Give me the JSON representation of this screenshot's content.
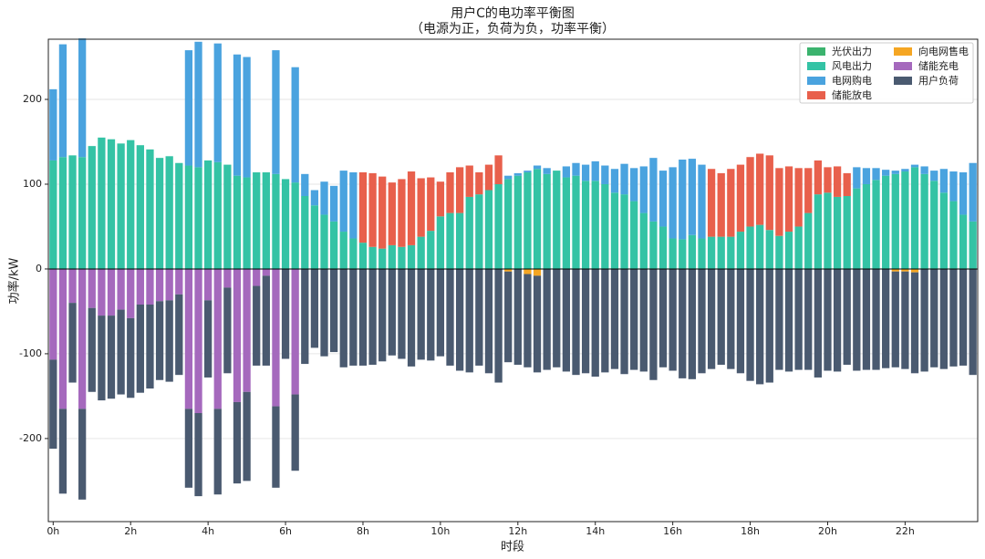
{
  "chart_data": {
    "type": "bar",
    "title": "用户C的电功率平衡图",
    "subtitle": "（电源为正，负荷为负，功率平衡）",
    "x_label": "时段",
    "y_label": "功率/kW",
    "categories": [
      "0h",
      null,
      null,
      null,
      null,
      null,
      null,
      null,
      "2h",
      null,
      null,
      null,
      null,
      null,
      null,
      null,
      "4h",
      null,
      null,
      null,
      null,
      null,
      null,
      null,
      "6h",
      null,
      null,
      null,
      null,
      null,
      null,
      null,
      "8h",
      null,
      null,
      null,
      null,
      null,
      null,
      null,
      "10h",
      null,
      null,
      null,
      null,
      null,
      null,
      null,
      "12h",
      null,
      null,
      null,
      null,
      null,
      null,
      null,
      "14h",
      null,
      null,
      null,
      null,
      null,
      null,
      null,
      "16h",
      null,
      null,
      null,
      null,
      null,
      null,
      null,
      "18h",
      null,
      null,
      null,
      null,
      null,
      null,
      null,
      "20h",
      null,
      null,
      null,
      null,
      null,
      null,
      null,
      "22h",
      null,
      null,
      null,
      null,
      null,
      null,
      null
    ],
    "ylim": [
      -298,
      271
    ],
    "yticks": [
      -200,
      -100,
      0,
      100,
      200
    ],
    "grid": true,
    "legend": "upper right",
    "series": [
      {
        "name": "光伏出力",
        "color": "#3bb36e",
        "values": [
          0,
          0,
          0,
          0,
          0,
          0,
          0,
          0,
          0,
          0,
          0,
          0,
          0,
          0,
          0,
          0,
          0,
          0,
          0,
          0,
          0,
          0,
          0,
          0,
          0,
          0,
          0,
          0,
          0,
          0,
          0,
          0,
          0,
          0,
          0,
          0,
          0,
          0,
          0,
          0,
          0,
          0,
          0,
          0,
          0,
          0,
          0,
          0,
          0,
          0,
          0,
          0,
          0,
          0,
          0,
          0,
          0,
          0,
          0,
          0,
          0,
          0,
          0,
          0,
          0,
          0,
          0,
          0,
          0,
          0,
          0,
          0,
          0,
          0,
          0,
          0,
          0,
          0,
          0,
          0,
          0,
          0,
          0,
          0,
          0,
          0,
          0,
          0,
          0,
          0,
          0,
          0,
          0,
          0,
          0,
          0
        ]
      },
      {
        "name": "风电出力",
        "color": "#34c3a5",
        "values": [
          128,
          132,
          134,
          132,
          145,
          155,
          153,
          148,
          152,
          146,
          141,
          131,
          133,
          125,
          122,
          120,
          128,
          126,
          123,
          110,
          108,
          114,
          114,
          112,
          106,
          102,
          86,
          75,
          64,
          56,
          44,
          36,
          31,
          26,
          24,
          28,
          26,
          28,
          38,
          45,
          62,
          66,
          66,
          85,
          88,
          93,
          100,
          106,
          110,
          114,
          118,
          112,
          116,
          108,
          110,
          104,
          104,
          100,
          90,
          88,
          80,
          66,
          56,
          50,
          36,
          35,
          40,
          36,
          38,
          38,
          38,
          44,
          50,
          52,
          46,
          39,
          44,
          50,
          66,
          88,
          90,
          85,
          86,
          95,
          100,
          105,
          110,
          112,
          115,
          120,
          112,
          104,
          90,
          80,
          64,
          56
        ]
      },
      {
        "name": "电网购电",
        "color": "#4aa3df",
        "values": [
          84,
          133,
          0,
          140,
          0,
          0,
          0,
          0,
          0,
          0,
          0,
          0,
          0,
          0,
          136,
          148,
          0,
          140,
          0,
          143,
          142,
          0,
          0,
          146,
          0,
          136,
          26,
          18,
          39,
          42,
          72,
          78,
          0,
          0,
          0,
          0,
          0,
          0,
          0,
          0,
          0,
          0,
          0,
          0,
          0,
          0,
          0,
          4,
          3,
          2,
          4,
          7,
          0,
          13,
          15,
          19,
          23,
          22,
          28,
          36,
          39,
          55,
          75,
          66,
          84,
          94,
          90,
          87,
          0,
          0,
          0,
          0,
          0,
          0,
          0,
          0,
          0,
          0,
          0,
          0,
          0,
          0,
          0,
          25,
          19,
          14,
          7,
          4,
          3,
          3,
          9,
          12,
          28,
          35,
          50,
          69
        ]
      },
      {
        "name": "储能放电",
        "color": "#e8604c",
        "values": [
          0,
          0,
          0,
          0,
          0,
          0,
          0,
          0,
          0,
          0,
          0,
          0,
          0,
          0,
          0,
          0,
          0,
          0,
          0,
          0,
          0,
          0,
          0,
          0,
          0,
          0,
          0,
          0,
          0,
          0,
          0,
          0,
          83,
          87,
          85,
          74,
          80,
          87,
          69,
          63,
          41,
          48,
          54,
          37,
          26,
          30,
          34,
          0,
          0,
          0,
          0,
          0,
          0,
          0,
          0,
          0,
          0,
          0,
          0,
          0,
          0,
          0,
          0,
          0,
          0,
          0,
          0,
          0,
          80,
          75,
          80,
          79,
          82,
          84,
          88,
          80,
          77,
          69,
          53,
          40,
          30,
          36,
          27,
          0,
          0,
          0,
          0,
          0,
          0,
          0,
          0,
          0,
          0,
          0,
          0,
          0
        ]
      },
      {
        "name": "向电网售电",
        "color": "#f5a623",
        "values": [
          0,
          0,
          0,
          0,
          0,
          0,
          0,
          0,
          0,
          0,
          0,
          0,
          0,
          0,
          0,
          0,
          0,
          0,
          0,
          0,
          0,
          0,
          0,
          0,
          0,
          0,
          0,
          0,
          0,
          0,
          0,
          0,
          0,
          0,
          0,
          0,
          0,
          0,
          0,
          0,
          0,
          0,
          0,
          0,
          0,
          0,
          0,
          -3,
          0,
          -6,
          -8,
          0,
          0,
          0,
          0,
          0,
          0,
          0,
          0,
          0,
          0,
          0,
          0,
          0,
          0,
          0,
          0,
          0,
          0,
          0,
          0,
          0,
          0,
          0,
          0,
          0,
          0,
          0,
          0,
          0,
          0,
          0,
          0,
          0,
          0,
          0,
          0,
          -3,
          -3,
          -4,
          0,
          0,
          0,
          0,
          0,
          0
        ]
      },
      {
        "name": "储能充电",
        "color": "#a569bd",
        "values": [
          -107,
          -165,
          -40,
          -165,
          -46,
          -55,
          -55,
          -48,
          -58,
          -42,
          -42,
          -38,
          -37,
          -30,
          -165,
          -170,
          -37,
          -165,
          -22,
          -157,
          -145,
          -20,
          -8,
          -162,
          0,
          -148,
          0,
          0,
          0,
          0,
          0,
          0,
          0,
          0,
          0,
          0,
          0,
          0,
          0,
          0,
          0,
          0,
          0,
          0,
          0,
          0,
          0,
          0,
          0,
          0,
          0,
          0,
          0,
          0,
          0,
          0,
          0,
          0,
          0,
          0,
          0,
          0,
          0,
          0,
          0,
          0,
          0,
          0,
          0,
          0,
          0,
          0,
          0,
          0,
          0,
          0,
          0,
          0,
          0,
          0,
          0,
          0,
          0,
          0,
          0,
          0,
          0,
          0,
          0,
          0,
          0,
          0,
          0,
          0,
          0,
          0
        ]
      },
      {
        "name": "用户负荷",
        "color": "#4a5a70",
        "values": [
          -105,
          -100,
          -94,
          -107,
          -99,
          -100,
          -98,
          -100,
          -94,
          -104,
          -99,
          -93,
          -96,
          -95,
          -93,
          -98,
          -91,
          -101,
          -101,
          -96,
          -105,
          -94,
          -106,
          -96,
          -106,
          -90,
          -112,
          -93,
          -103,
          -98,
          -116,
          -114,
          -114,
          -113,
          -109,
          -102,
          -106,
          -115,
          -107,
          -108,
          -103,
          -114,
          -120,
          -122,
          -114,
          -123,
          -134,
          -107,
          -113,
          -110,
          -114,
          -119,
          -116,
          -121,
          -125,
          -123,
          -127,
          -122,
          -118,
          -124,
          -119,
          -121,
          -131,
          -116,
          -120,
          -129,
          -130,
          -123,
          -118,
          -113,
          -118,
          -123,
          -132,
          -136,
          -134,
          -119,
          -121,
          -119,
          -119,
          -128,
          -120,
          -121,
          -113,
          -120,
          -119,
          -119,
          -117,
          -113,
          -115,
          -119,
          -121,
          -116,
          -118,
          -115,
          -114,
          -125
        ]
      }
    ]
  }
}
